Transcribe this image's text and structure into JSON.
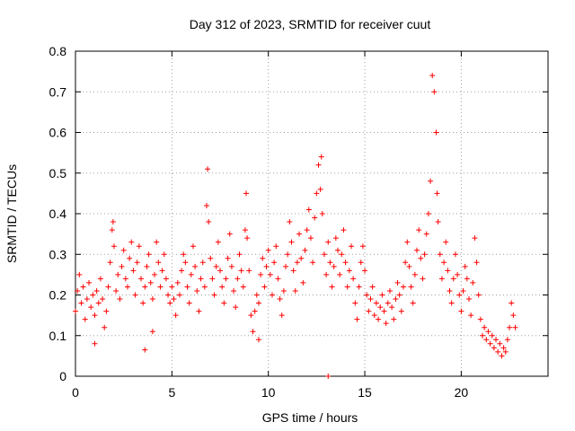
{
  "chart_data": {
    "type": "scatter",
    "title": "Day 312 of 2023, SRMTID for receiver cuut",
    "xlabel": "GPS time / hours",
    "ylabel": "SRMTID / TECUs",
    "xlim": [
      0,
      24.5
    ],
    "ylim": [
      0,
      0.8
    ],
    "xticks": [
      0,
      5,
      10,
      15,
      20
    ],
    "xtick_labels": [
      "0",
      "5",
      "10",
      "15",
      "20"
    ],
    "yticks": [
      0,
      0.1,
      0.2,
      0.3,
      0.4,
      0.5,
      0.6,
      0.7,
      0.8
    ],
    "ytick_labels": [
      "0",
      "0.1",
      "0.2",
      "0.3",
      "0.4",
      "0.5",
      "0.6",
      "0.7",
      "0.8"
    ],
    "grid": true,
    "marker": "+",
    "color": "#ff0000",
    "series": [
      {
        "name": "SRMTID",
        "x": [
          0.0,
          0.1,
          0.2,
          0.3,
          0.4,
          0.5,
          0.6,
          0.7,
          0.8,
          0.9,
          1.0,
          1.1,
          1.2,
          1.3,
          1.4,
          1.5,
          1.6,
          1.7,
          1.8,
          1.9,
          1.95,
          2.0,
          2.1,
          2.2,
          2.3,
          2.4,
          2.5,
          2.6,
          2.7,
          2.8,
          2.9,
          3.0,
          3.1,
          3.2,
          3.3,
          3.4,
          3.5,
          3.6,
          3.7,
          3.8,
          3.9,
          4.0,
          4.1,
          4.2,
          4.3,
          4.4,
          4.5,
          4.6,
          4.7,
          4.8,
          4.9,
          5.0,
          5.1,
          5.2,
          5.3,
          5.4,
          5.5,
          5.6,
          5.7,
          5.8,
          5.9,
          6.0,
          6.1,
          6.2,
          6.3,
          6.4,
          6.5,
          6.6,
          6.7,
          6.8,
          6.85,
          6.9,
          7.0,
          7.1,
          7.2,
          7.3,
          7.4,
          7.5,
          7.6,
          7.7,
          7.8,
          7.9,
          8.0,
          8.1,
          8.2,
          8.3,
          8.4,
          8.5,
          8.6,
          8.7,
          8.8,
          8.85,
          8.9,
          9.0,
          9.1,
          9.2,
          9.3,
          9.4,
          9.5,
          9.6,
          9.7,
          9.8,
          9.9,
          10.0,
          10.1,
          10.2,
          10.3,
          10.4,
          10.5,
          10.6,
          10.7,
          10.8,
          10.9,
          11.0,
          11.1,
          11.2,
          11.3,
          11.4,
          11.5,
          11.6,
          11.7,
          11.8,
          11.9,
          12.0,
          12.1,
          12.2,
          12.3,
          12.4,
          12.5,
          12.6,
          12.7,
          12.75,
          12.8,
          12.9,
          13.0,
          13.1,
          13.2,
          13.3,
          13.4,
          13.5,
          13.6,
          13.7,
          13.8,
          13.9,
          14.0,
          14.1,
          14.2,
          14.3,
          14.4,
          14.5,
          14.6,
          14.7,
          14.8,
          14.9,
          15.0,
          15.1,
          15.2,
          15.3,
          15.4,
          15.5,
          15.6,
          15.7,
          15.8,
          15.9,
          16.0,
          16.1,
          16.2,
          16.3,
          16.4,
          16.5,
          16.6,
          16.7,
          16.8,
          16.9,
          17.0,
          17.1,
          17.2,
          17.3,
          17.4,
          17.5,
          17.6,
          17.7,
          17.8,
          17.9,
          18.0,
          18.1,
          18.2,
          18.3,
          18.4,
          18.5,
          18.6,
          18.7,
          18.75,
          18.8,
          18.9,
          19.0,
          19.1,
          19.2,
          19.3,
          19.4,
          19.5,
          19.6,
          19.7,
          19.8,
          19.9,
          20.0,
          20.1,
          20.2,
          20.3,
          20.4,
          20.5,
          20.6,
          20.7,
          20.8,
          20.9,
          21.0,
          21.1,
          21.2,
          21.3,
          21.4,
          21.5,
          21.6,
          21.7,
          21.8,
          21.9,
          22.0,
          22.1,
          22.2,
          22.3,
          22.4,
          22.5,
          22.6,
          22.7,
          22.8,
          13.1,
          3.6,
          4.0,
          1.0,
          9.5
        ],
        "y": [
          0.16,
          0.21,
          0.25,
          0.18,
          0.22,
          0.14,
          0.19,
          0.23,
          0.17,
          0.2,
          0.15,
          0.21,
          0.18,
          0.24,
          0.19,
          0.12,
          0.16,
          0.22,
          0.28,
          0.36,
          0.38,
          0.32,
          0.21,
          0.25,
          0.19,
          0.27,
          0.31,
          0.24,
          0.22,
          0.29,
          0.33,
          0.26,
          0.2,
          0.28,
          0.32,
          0.24,
          0.18,
          0.22,
          0.27,
          0.3,
          0.23,
          0.19,
          0.25,
          0.33,
          0.28,
          0.22,
          0.26,
          0.3,
          0.24,
          0.2,
          0.18,
          0.22,
          0.19,
          0.15,
          0.23,
          0.2,
          0.26,
          0.3,
          0.28,
          0.22,
          0.18,
          0.25,
          0.32,
          0.27,
          0.21,
          0.16,
          0.24,
          0.28,
          0.22,
          0.42,
          0.51,
          0.38,
          0.29,
          0.24,
          0.2,
          0.27,
          0.33,
          0.26,
          0.22,
          0.18,
          0.24,
          0.29,
          0.35,
          0.27,
          0.21,
          0.17,
          0.24,
          0.3,
          0.26,
          0.22,
          0.36,
          0.45,
          0.34,
          0.26,
          0.15,
          0.11,
          0.16,
          0.2,
          0.18,
          0.25,
          0.29,
          0.22,
          0.27,
          0.31,
          0.25,
          0.2,
          0.28,
          0.32,
          0.24,
          0.19,
          0.15,
          0.21,
          0.27,
          0.3,
          0.38,
          0.33,
          0.26,
          0.21,
          0.28,
          0.35,
          0.29,
          0.23,
          0.31,
          0.36,
          0.41,
          0.34,
          0.28,
          0.39,
          0.45,
          0.52,
          0.46,
          0.54,
          0.4,
          0.3,
          0.25,
          0.33,
          0.28,
          0.22,
          0.27,
          0.34,
          0.31,
          0.25,
          0.3,
          0.36,
          0.28,
          0.22,
          0.26,
          0.32,
          0.24,
          0.18,
          0.14,
          0.22,
          0.28,
          0.32,
          0.26,
          0.2,
          0.16,
          0.19,
          0.22,
          0.15,
          0.18,
          0.14,
          0.17,
          0.2,
          0.16,
          0.13,
          0.18,
          0.21,
          0.17,
          0.14,
          0.19,
          0.23,
          0.2,
          0.16,
          0.22,
          0.28,
          0.33,
          0.27,
          0.22,
          0.18,
          0.25,
          0.31,
          0.36,
          0.29,
          0.24,
          0.3,
          0.35,
          0.4,
          0.48,
          0.74,
          0.7,
          0.6,
          0.45,
          0.38,
          0.3,
          0.24,
          0.28,
          0.33,
          0.26,
          0.21,
          0.18,
          0.24,
          0.3,
          0.25,
          0.2,
          0.16,
          0.21,
          0.27,
          0.24,
          0.19,
          0.15,
          0.23,
          0.34,
          0.28,
          0.2,
          0.14,
          0.1,
          0.12,
          0.09,
          0.11,
          0.08,
          0.1,
          0.07,
          0.09,
          0.06,
          0.08,
          0.05,
          0.07,
          0.06,
          0.09,
          0.12,
          0.18,
          0.15,
          0.12,
          0.0,
          0.065,
          0.11,
          0.08,
          0.09
        ]
      }
    ]
  }
}
